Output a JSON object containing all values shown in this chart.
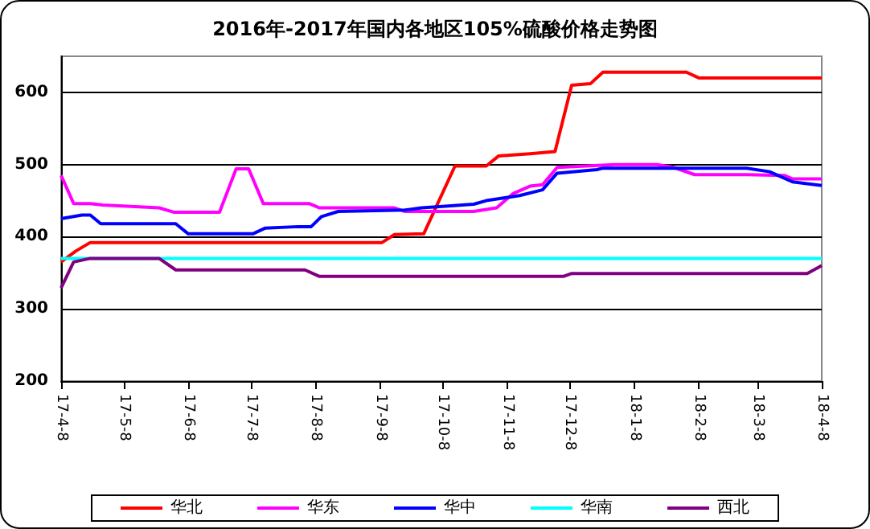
{
  "chart_data": {
    "type": "line",
    "title": "2016年-2017年国内各地区105%硫酸价格走势图",
    "xlim": [
      "2017-04-08",
      "2018-04-08"
    ],
    "xticks": [
      {
        "value": "2017-04-08",
        "label": "17-4-8"
      },
      {
        "value": "2017-05-08",
        "label": "17-5-8"
      },
      {
        "value": "2017-06-08",
        "label": "17-6-8"
      },
      {
        "value": "2017-07-08",
        "label": "17-7-8"
      },
      {
        "value": "2017-08-08",
        "label": "17-8-8"
      },
      {
        "value": "2017-09-08",
        "label": "17-9-8"
      },
      {
        "value": "2017-10-08",
        "label": "17-10-8"
      },
      {
        "value": "2017-11-08",
        "label": "17-11-8"
      },
      {
        "value": "2017-12-08",
        "label": "17-12-8"
      },
      {
        "value": "2018-01-08",
        "label": "18-1-8"
      },
      {
        "value": "2018-02-08",
        "label": "18-2-8"
      },
      {
        "value": "2018-03-08",
        "label": "18-3-8"
      },
      {
        "value": "2018-04-08",
        "label": "18-4-8"
      }
    ],
    "ylim": [
      200,
      650
    ],
    "yticks": [
      200,
      300,
      400,
      500,
      600
    ],
    "grid": "y",
    "legend": "bottom",
    "marker": "none",
    "line_style": "solid",
    "series": [
      {
        "name": "华北",
        "color": "#ff0000",
        "x": [
          "2017-04-08",
          "2017-04-15",
          "2017-04-22",
          "2017-09-09",
          "2017-09-15",
          "2017-09-29",
          "2017-10-14",
          "2017-10-29",
          "2017-11-04",
          "2017-11-19",
          "2017-12-01",
          "2017-12-09",
          "2017-12-18",
          "2017-12-24",
          "2018-02-02",
          "2018-02-08",
          "2018-04-08"
        ],
        "values": [
          365,
          380,
          392,
          392,
          403,
          404,
          498,
          498,
          512,
          515,
          518,
          610,
          612,
          628,
          628,
          620,
          620
        ]
      },
      {
        "name": "华东",
        "color": "#ff00ff",
        "x": [
          "2017-04-08",
          "2017-04-14",
          "2017-04-22",
          "2017-04-28",
          "2017-05-25",
          "2017-06-01",
          "2017-06-23",
          "2017-07-01",
          "2017-07-07",
          "2017-07-14",
          "2017-08-05",
          "2017-08-10",
          "2017-09-15",
          "2017-09-20",
          "2017-10-23",
          "2017-11-03",
          "2017-11-11",
          "2017-11-19",
          "2017-11-25",
          "2017-12-02",
          "2017-12-30",
          "2018-01-19",
          "2018-01-27",
          "2018-02-06",
          "2018-03-03",
          "2018-03-21",
          "2018-03-25",
          "2018-04-08"
        ],
        "values": [
          485,
          446,
          446,
          444,
          440,
          434,
          434,
          494,
          494,
          446,
          446,
          440,
          440,
          435,
          435,
          440,
          460,
          470,
          472,
          496,
          500,
          500,
          496,
          486,
          486,
          485,
          480,
          480
        ]
      },
      {
        "name": "华中",
        "color": "#0000ff",
        "x": [
          "2017-04-08",
          "2017-04-18",
          "2017-04-22",
          "2017-04-27",
          "2017-06-02",
          "2017-06-08",
          "2017-07-09",
          "2017-07-15",
          "2017-07-31",
          "2017-08-06",
          "2017-08-11",
          "2017-08-19",
          "2017-09-20",
          "2017-09-28",
          "2017-10-08",
          "2017-10-23",
          "2017-10-29",
          "2017-11-14",
          "2017-11-25",
          "2017-12-02",
          "2017-12-21",
          "2017-12-24",
          "2018-03-03",
          "2018-03-14",
          "2018-03-25",
          "2018-04-08"
        ],
        "values": [
          425,
          430,
          430,
          418,
          418,
          404,
          404,
          412,
          414,
          414,
          428,
          435,
          437,
          440,
          442,
          445,
          450,
          457,
          465,
          488,
          493,
          495,
          495,
          490,
          476,
          471
        ]
      },
      {
        "name": "华南",
        "color": "#00ffff",
        "x": [
          "2017-04-08",
          "2018-04-08"
        ],
        "values": [
          370,
          370
        ]
      },
      {
        "name": "西北",
        "color": "#800080",
        "x": [
          "2017-04-08",
          "2017-04-14",
          "2017-04-22",
          "2017-05-25",
          "2017-06-02",
          "2017-08-03",
          "2017-08-10",
          "2017-12-05",
          "2017-12-09",
          "2018-04-01",
          "2018-04-08"
        ],
        "values": [
          329,
          365,
          370,
          370,
          354,
          354,
          345,
          345,
          349,
          349,
          360
        ]
      }
    ]
  }
}
